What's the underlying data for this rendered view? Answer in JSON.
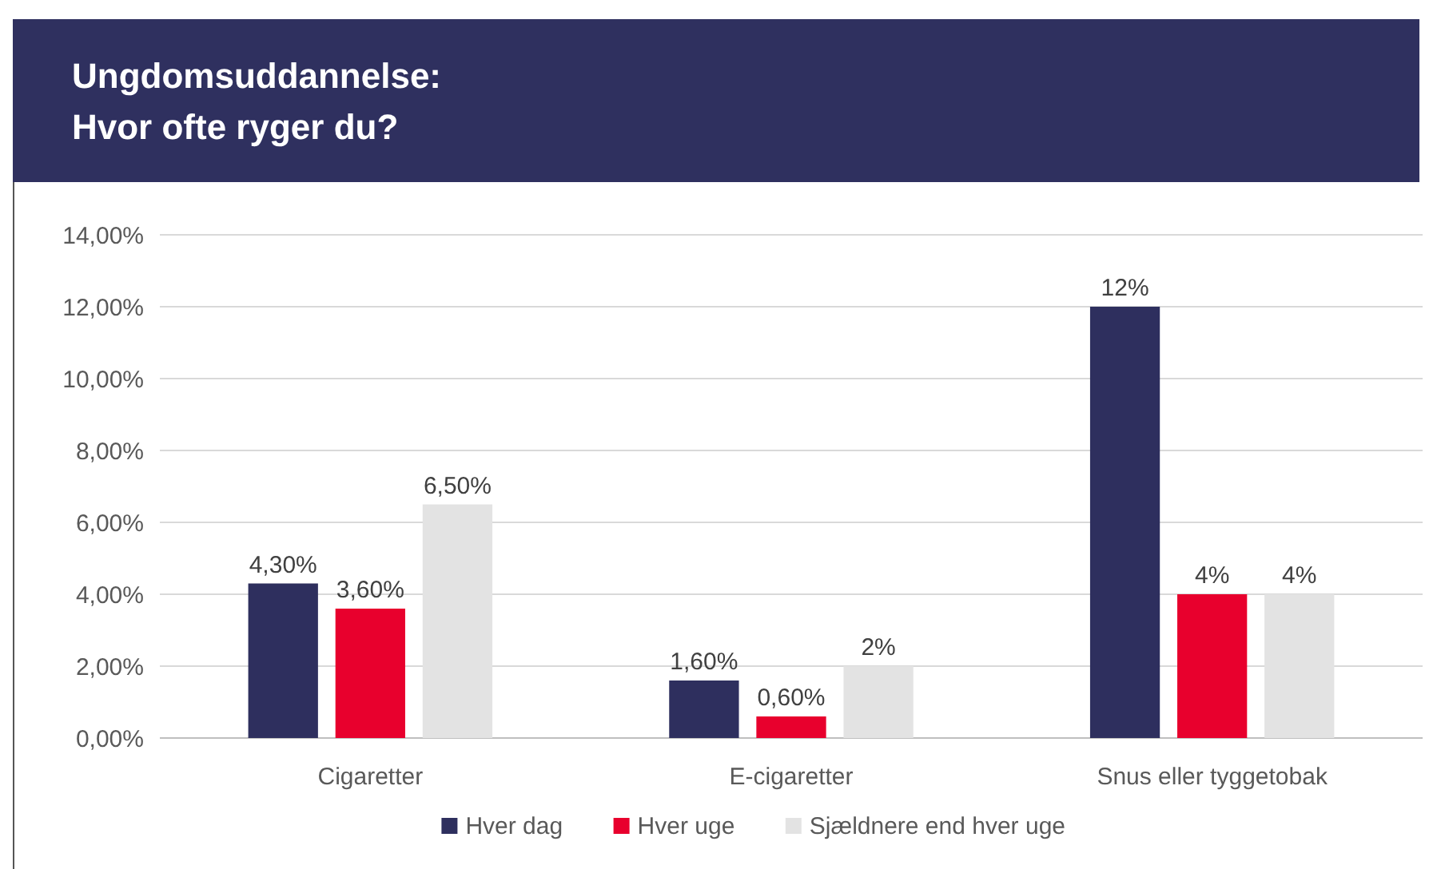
{
  "chart_data": {
    "type": "bar",
    "title": "Ungdomsuddannelse:\nHvor ofte ryger du?",
    "categories": [
      "Cigaretter",
      "E-cigaretter",
      "Snus eller tyggetobak"
    ],
    "series": [
      {
        "name": "Hver dag",
        "color": "#2e2f5e",
        "values": [
          4.3,
          1.6,
          12
        ],
        "value_labels": [
          "4,30%",
          "1,60%",
          "12%"
        ]
      },
      {
        "name": "Hver uge",
        "color": "#e8002d",
        "values": [
          3.6,
          0.6,
          4
        ],
        "value_labels": [
          "3,60%",
          "0,60%",
          "4%"
        ]
      },
      {
        "name": "Sjældnere end hver uge",
        "color": "#e3e3e3",
        "values": [
          6.5,
          2,
          4
        ],
        "value_labels": [
          "6,50%",
          "2%",
          "4%"
        ]
      }
    ],
    "ylim": [
      0,
      14
    ],
    "yticks": [
      {
        "value": 0,
        "label": "0,00%"
      },
      {
        "value": 2,
        "label": "2,00%"
      },
      {
        "value": 4,
        "label": "4,00%"
      },
      {
        "value": 6,
        "label": "6,00%"
      },
      {
        "value": 8,
        "label": "8,00%"
      },
      {
        "value": 10,
        "label": "10,00%"
      },
      {
        "value": 12,
        "label": "12,00%"
      },
      {
        "value": 14,
        "label": "14,00%"
      }
    ],
    "grid": "y",
    "legend": "bottom"
  }
}
